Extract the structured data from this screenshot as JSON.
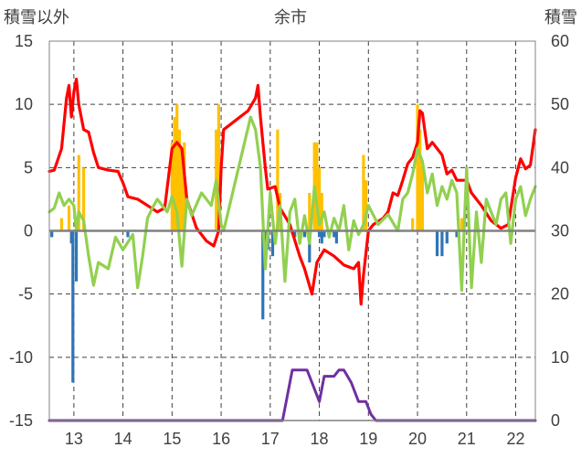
{
  "chart_data": {
    "type": "line",
    "title": "余市",
    "left_axis_label": "積雪以外",
    "right_axis_label": "積雪",
    "left_ylim": [
      -15,
      15
    ],
    "right_ylim": [
      0,
      60
    ],
    "left_ticks": [
      "15",
      "10",
      "5",
      "0",
      "-5",
      "-10",
      "-15"
    ],
    "right_ticks": [
      "60",
      "50",
      "40",
      "30",
      "20",
      "10",
      "0"
    ],
    "xlim": [
      12.5,
      22.4
    ],
    "x_ticks": [
      "13",
      "14",
      "15",
      "16",
      "17",
      "18",
      "19",
      "20",
      "21",
      "22"
    ],
    "grid": "vertical dashed at each year, horizontal dashed every 5",
    "colors": {
      "red_series": "#ff0000",
      "green_series": "#92d050",
      "purple_series": "#7030a0",
      "positive_bars": "#ffc000",
      "negative_bars": "#2e75b6",
      "zero_line": "#808080",
      "grid": "#404040"
    },
    "series": [
      {
        "axis": "left",
        "style": "line",
        "color": "#ff0000",
        "points": [
          [
            12.5,
            4.7
          ],
          [
            12.6,
            4.8
          ],
          [
            12.75,
            6.5
          ],
          [
            12.85,
            10.5
          ],
          [
            12.9,
            11.5
          ],
          [
            12.95,
            9.0
          ],
          [
            13.0,
            11.0
          ],
          [
            13.05,
            12.0
          ],
          [
            13.1,
            10.0
          ],
          [
            13.2,
            8.0
          ],
          [
            13.3,
            7.8
          ],
          [
            13.4,
            6.2
          ],
          [
            13.5,
            5.0
          ],
          [
            13.7,
            4.8
          ],
          [
            13.9,
            4.7
          ],
          [
            14.0,
            3.8
          ],
          [
            14.1,
            2.7
          ],
          [
            14.3,
            2.5
          ],
          [
            14.5,
            2.0
          ],
          [
            14.7,
            1.5
          ],
          [
            14.85,
            1.8
          ],
          [
            15.0,
            6.5
          ],
          [
            15.1,
            7.0
          ],
          [
            15.2,
            6.5
          ],
          [
            15.3,
            2.5
          ],
          [
            15.5,
            0.2
          ],
          [
            15.7,
            -0.8
          ],
          [
            15.85,
            -1.2
          ],
          [
            15.95,
            0.0
          ],
          [
            16.0,
            5.0
          ],
          [
            16.05,
            8.0
          ],
          [
            16.55,
            9.5
          ],
          [
            16.7,
            10.5
          ],
          [
            16.75,
            11.5
          ],
          [
            16.8,
            9.0
          ],
          [
            16.9,
            5.0
          ],
          [
            16.95,
            3.3
          ],
          [
            17.1,
            3.5
          ],
          [
            17.2,
            1.8
          ],
          [
            17.4,
            0.5
          ],
          [
            17.6,
            -2.0
          ],
          [
            17.7,
            -3.0
          ],
          [
            17.85,
            -5.0
          ],
          [
            17.95,
            -2.5
          ],
          [
            18.1,
            -1.5
          ],
          [
            18.3,
            -2.0
          ],
          [
            18.5,
            -2.7
          ],
          [
            18.7,
            -3.0
          ],
          [
            18.8,
            -2.5
          ],
          [
            18.85,
            -5.8
          ],
          [
            18.9,
            -3.5
          ],
          [
            19.0,
            0.0
          ],
          [
            19.1,
            0.5
          ],
          [
            19.3,
            1.0
          ],
          [
            19.4,
            1.5
          ],
          [
            19.5,
            3.0
          ],
          [
            19.6,
            2.8
          ],
          [
            19.7,
            4.0
          ],
          [
            19.8,
            5.3
          ],
          [
            19.9,
            5.8
          ],
          [
            20.0,
            7.0
          ],
          [
            20.05,
            9.5
          ],
          [
            20.1,
            9.3
          ],
          [
            20.2,
            6.5
          ],
          [
            20.3,
            7.0
          ],
          [
            20.5,
            6.0
          ],
          [
            20.6,
            4.5
          ],
          [
            20.7,
            4.8
          ],
          [
            20.8,
            4.0
          ],
          [
            21.0,
            4.0
          ],
          [
            21.1,
            3.0
          ],
          [
            21.3,
            2.0
          ],
          [
            21.5,
            0.8
          ],
          [
            21.7,
            0.2
          ],
          [
            21.85,
            0.5
          ],
          [
            22.0,
            4.2
          ],
          [
            22.1,
            5.7
          ],
          [
            22.2,
            4.9
          ],
          [
            22.3,
            5.2
          ],
          [
            22.4,
            8.0
          ]
        ]
      },
      {
        "axis": "left",
        "style": "line",
        "color": "#92d050",
        "points": [
          [
            12.5,
            1.5
          ],
          [
            12.6,
            1.8
          ],
          [
            12.7,
            3.0
          ],
          [
            12.8,
            2.0
          ],
          [
            12.9,
            2.5
          ],
          [
            13.0,
            2.0
          ],
          [
            13.05,
            0.0
          ],
          [
            13.1,
            1.5
          ],
          [
            13.2,
            0.8
          ],
          [
            13.3,
            -2.0
          ],
          [
            13.4,
            -4.3
          ],
          [
            13.5,
            -2.5
          ],
          [
            13.7,
            -3.0
          ],
          [
            13.85,
            -0.5
          ],
          [
            14.0,
            -1.5
          ],
          [
            14.2,
            -0.3
          ],
          [
            14.3,
            -4.5
          ],
          [
            14.4,
            -2.0
          ],
          [
            14.5,
            1.0
          ],
          [
            14.6,
            1.8
          ],
          [
            14.7,
            2.5
          ],
          [
            14.9,
            1.5
          ],
          [
            15.0,
            2.7
          ],
          [
            15.1,
            1.5
          ],
          [
            15.2,
            -2.8
          ],
          [
            15.3,
            2.5
          ],
          [
            15.4,
            1.2
          ],
          [
            15.6,
            3.0
          ],
          [
            15.8,
            2.0
          ],
          [
            15.9,
            4.0
          ],
          [
            16.0,
            0.5
          ],
          [
            16.05,
            0.0
          ],
          [
            16.6,
            9.0
          ],
          [
            16.7,
            8.0
          ],
          [
            16.8,
            5.0
          ],
          [
            16.9,
            -3.0
          ],
          [
            17.0,
            3.0
          ],
          [
            17.1,
            -1.0
          ],
          [
            17.2,
            2.0
          ],
          [
            17.3,
            -4.0
          ],
          [
            17.4,
            1.5
          ],
          [
            17.5,
            2.5
          ],
          [
            17.6,
            -1.0
          ],
          [
            17.7,
            1.2
          ],
          [
            17.8,
            -1.0
          ],
          [
            17.9,
            3.5
          ],
          [
            18.0,
            0.5
          ],
          [
            18.1,
            1.5
          ],
          [
            18.2,
            -0.5
          ],
          [
            18.3,
            1.0
          ],
          [
            18.4,
            0.0
          ],
          [
            18.5,
            2.0
          ],
          [
            18.6,
            -1.5
          ],
          [
            18.7,
            0.8
          ],
          [
            18.8,
            -0.3
          ],
          [
            18.9,
            0.5
          ],
          [
            19.0,
            2.0
          ],
          [
            19.2,
            0.5
          ],
          [
            19.4,
            1.3
          ],
          [
            19.6,
            0.0
          ],
          [
            19.7,
            2.5
          ],
          [
            19.8,
            3.0
          ],
          [
            19.9,
            4.5
          ],
          [
            20.0,
            6.5
          ],
          [
            20.1,
            5.5
          ],
          [
            20.2,
            3.0
          ],
          [
            20.3,
            4.5
          ],
          [
            20.4,
            2.0
          ],
          [
            20.5,
            3.5
          ],
          [
            20.6,
            2.5
          ],
          [
            20.7,
            4.0
          ],
          [
            20.8,
            3.0
          ],
          [
            20.9,
            -4.7
          ],
          [
            21.0,
            5.0
          ],
          [
            21.1,
            -4.5
          ],
          [
            21.2,
            1.5
          ],
          [
            21.3,
            -2.5
          ],
          [
            21.4,
            2.5
          ],
          [
            21.5,
            1.5
          ],
          [
            21.6,
            0.5
          ],
          [
            21.7,
            2.5
          ],
          [
            21.8,
            3.0
          ],
          [
            21.9,
            -1.0
          ],
          [
            22.0,
            2.5
          ],
          [
            22.1,
            3.5
          ],
          [
            22.2,
            1.2
          ],
          [
            22.3,
            2.5
          ],
          [
            22.4,
            3.5
          ]
        ]
      },
      {
        "axis": "right",
        "style": "line",
        "color": "#7030a0",
        "points": [
          [
            12.5,
            0
          ],
          [
            17.25,
            0
          ],
          [
            17.45,
            8
          ],
          [
            17.55,
            8
          ],
          [
            17.75,
            8
          ],
          [
            17.85,
            6
          ],
          [
            18.0,
            3
          ],
          [
            18.1,
            7
          ],
          [
            18.3,
            7
          ],
          [
            18.4,
            8
          ],
          [
            18.5,
            8
          ],
          [
            18.65,
            6
          ],
          [
            18.8,
            3
          ],
          [
            18.95,
            3
          ],
          [
            19.05,
            1
          ],
          [
            19.15,
            0
          ],
          [
            22.4,
            0
          ]
        ]
      },
      {
        "axis": "left",
        "style": "bars",
        "bars": [
          [
            12.75,
            1.0
          ],
          [
            12.9,
            2.0
          ],
          [
            13.1,
            6.0
          ],
          [
            13.2,
            5.0
          ],
          [
            15.0,
            7.0
          ],
          [
            15.05,
            9.0
          ],
          [
            15.1,
            10.0
          ],
          [
            15.15,
            8.0
          ],
          [
            15.2,
            6.5
          ],
          [
            15.25,
            7.0
          ],
          [
            15.9,
            8.0
          ],
          [
            15.95,
            10.0
          ],
          [
            17.15,
            8.0
          ],
          [
            17.2,
            3.0
          ],
          [
            17.8,
            3.0
          ],
          [
            17.9,
            7.0
          ],
          [
            17.95,
            7.0
          ],
          [
            18.0,
            5.0
          ],
          [
            18.05,
            3.0
          ],
          [
            18.9,
            6.0
          ],
          [
            18.95,
            4.0
          ],
          [
            19.9,
            1.0
          ],
          [
            20.0,
            10.0
          ],
          [
            20.05,
            8.0
          ],
          [
            20.1,
            5.0
          ],
          [
            20.9,
            1.0
          ],
          [
            12.55,
            -0.5
          ],
          [
            12.95,
            -1.0
          ],
          [
            12.98,
            -12.0
          ],
          [
            13.05,
            -4.0
          ],
          [
            14.1,
            -0.5
          ],
          [
            16.85,
            -7.0
          ],
          [
            16.9,
            -3.0
          ],
          [
            16.95,
            -1.5
          ],
          [
            17.05,
            -2.0
          ],
          [
            17.5,
            -0.5
          ],
          [
            17.6,
            -1.0
          ],
          [
            17.7,
            -0.5
          ],
          [
            17.8,
            -2.5
          ],
          [
            18.0,
            -0.5
          ],
          [
            18.05,
            -1.0
          ],
          [
            18.1,
            -0.5
          ],
          [
            18.3,
            -0.5
          ],
          [
            18.35,
            -1.0
          ],
          [
            20.4,
            -2.0
          ],
          [
            20.5,
            -2.0
          ],
          [
            20.6,
            -1.0
          ],
          [
            20.8,
            -0.5
          ]
        ]
      }
    ]
  }
}
